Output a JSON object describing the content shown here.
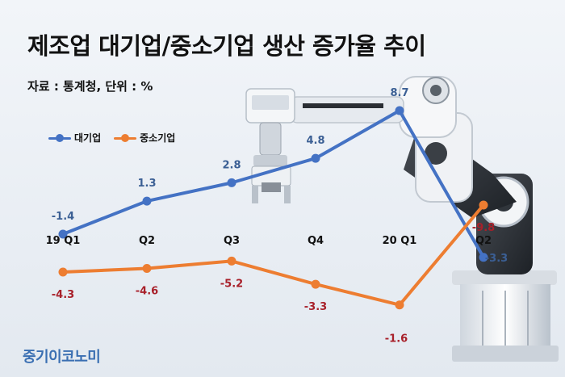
{
  "title": "제조업 대기업/중소기업 생산 증가율 추이",
  "subtitle": "자료 : 통계청, 단위 : %",
  "brand": "중기이코노미",
  "colors": {
    "large": "#4472c4",
    "small": "#ed7d31",
    "large_label": "#3b5f94",
    "small_label": "#a8202a"
  },
  "chart_data": {
    "type": "line",
    "categories": [
      "19 Q1",
      "Q2",
      "Q3",
      "Q4",
      "20 Q1",
      "Q2"
    ],
    "series": [
      {
        "name": "대기업",
        "values": [
          -1.4,
          1.3,
          2.8,
          4.8,
          8.7,
          -3.3
        ]
      },
      {
        "name": "중소기업",
        "values": [
          -4.3,
          -4.6,
          -5.2,
          -3.3,
          -1.6,
          -9.8
        ]
      }
    ],
    "value_labels": {
      "대기업": [
        "-1.4",
        "1.3",
        "2.8",
        "4.8",
        "8.7",
        "-3.3"
      ],
      "중소기업": [
        "-4.3",
        "-4.6",
        "-5.2",
        "-3.3",
        "-1.6",
        "-9.8"
      ]
    },
    "legend": "top-left",
    "grid": false
  }
}
